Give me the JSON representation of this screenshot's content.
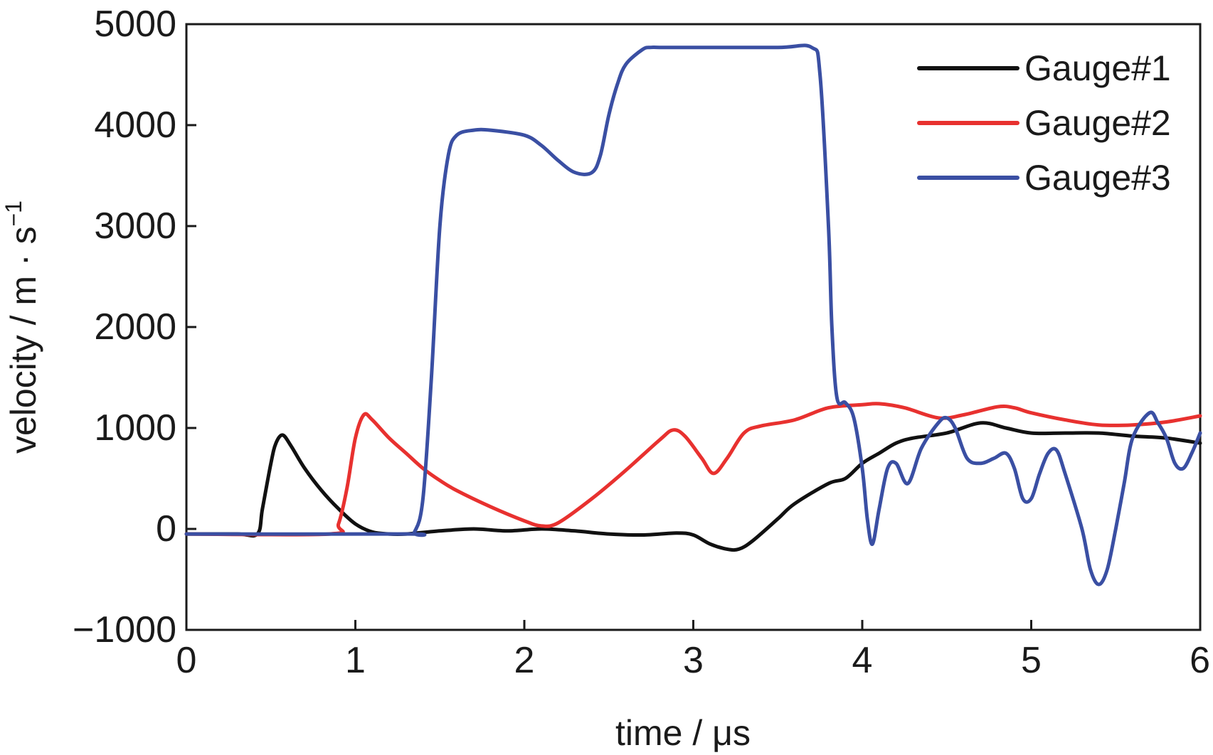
{
  "chart_data": {
    "type": "line",
    "title": "",
    "xlabel": "time / μs",
    "ylabel": "velocity / m · s",
    "ylabel_superscript": "−1",
    "xlim": [
      0,
      6
    ],
    "ylim": [
      -1000,
      5000
    ],
    "xticks": [
      0,
      1,
      2,
      3,
      4,
      5,
      6
    ],
    "yticks": [
      -1000,
      0,
      1000,
      2000,
      3000,
      4000,
      5000
    ],
    "xtick_labels": [
      "0",
      "1",
      "2",
      "3",
      "4",
      "5",
      "6"
    ],
    "ytick_labels": [
      "−1000",
      "0",
      "1000",
      "2000",
      "3000",
      "4000",
      "5000"
    ],
    "grid": false,
    "legend_position": "top-right",
    "series": [
      {
        "name": "Gauge#1",
        "color": "#111111",
        "x": [
          0,
          0.3,
          0.42,
          0.45,
          0.5,
          0.53,
          0.57,
          0.62,
          0.7,
          0.8,
          0.9,
          1.0,
          1.1,
          1.2,
          1.3,
          1.5,
          1.7,
          1.9,
          2.1,
          2.3,
          2.5,
          2.7,
          2.9,
          3.0,
          3.1,
          3.2,
          3.27,
          3.35,
          3.5,
          3.6,
          3.8,
          3.9,
          4.0,
          4.1,
          4.2,
          4.3,
          4.5,
          4.7,
          4.85,
          5.0,
          5.2,
          5.4,
          5.6,
          5.8,
          6.0
        ],
        "y": [
          -50,
          -50,
          -50,
          200,
          650,
          850,
          930,
          820,
          600,
          380,
          200,
          50,
          -30,
          -50,
          -50,
          -20,
          0,
          -20,
          0,
          -20,
          -50,
          -60,
          -40,
          -60,
          -150,
          -200,
          -200,
          -120,
          100,
          250,
          450,
          500,
          650,
          750,
          850,
          900,
          950,
          1050,
          1000,
          950,
          950,
          950,
          920,
          900,
          850
        ]
      },
      {
        "name": "Gauge#2",
        "color": "#e8312f",
        "x": [
          0,
          0.85,
          0.9,
          0.95,
          1.0,
          1.05,
          1.1,
          1.2,
          1.3,
          1.4,
          1.5,
          1.6,
          1.8,
          2.0,
          2.1,
          2.2,
          2.4,
          2.6,
          2.8,
          2.88,
          2.95,
          3.05,
          3.12,
          3.2,
          3.3,
          3.4,
          3.6,
          3.8,
          4.0,
          4.1,
          4.25,
          4.45,
          4.6,
          4.8,
          4.9,
          5.0,
          5.2,
          5.4,
          5.6,
          5.8,
          6.0
        ],
        "y": [
          -50,
          -50,
          50,
          400,
          900,
          1130,
          1080,
          900,
          750,
          600,
          480,
          380,
          220,
          80,
          30,
          60,
          300,
          580,
          880,
          980,
          920,
          700,
          550,
          700,
          950,
          1020,
          1080,
          1200,
          1230,
          1240,
          1200,
          1100,
          1130,
          1210,
          1200,
          1150,
          1080,
          1030,
          1030,
          1060,
          1120
        ]
      },
      {
        "name": "Gauge#3",
        "color": "#3a4fa3",
        "x": [
          0,
          1.3,
          1.35,
          1.4,
          1.45,
          1.5,
          1.55,
          1.6,
          1.7,
          1.8,
          2.0,
          2.1,
          2.2,
          2.3,
          2.4,
          2.45,
          2.5,
          2.55,
          2.6,
          2.7,
          2.75,
          2.8,
          3.0,
          3.5,
          3.7,
          3.75,
          3.8,
          3.82,
          3.85,
          3.9,
          3.95,
          4.0,
          4.03,
          4.06,
          4.1,
          4.15,
          4.2,
          4.27,
          4.35,
          4.45,
          4.5,
          4.55,
          4.62,
          4.7,
          4.78,
          4.85,
          4.9,
          4.95,
          5.0,
          5.05,
          5.1,
          5.15,
          5.2,
          5.3,
          5.35,
          5.4,
          5.45,
          5.5,
          5.55,
          5.6,
          5.7,
          5.75,
          5.8,
          5.85,
          5.9,
          5.95,
          6.0
        ],
        "y": [
          -50,
          -50,
          -30,
          300,
          1500,
          3000,
          3700,
          3900,
          3950,
          3950,
          3900,
          3800,
          3650,
          3530,
          3530,
          3700,
          4100,
          4400,
          4600,
          4750,
          4770,
          4770,
          4770,
          4770,
          4770,
          4500,
          3000,
          2000,
          1300,
          1250,
          1100,
          600,
          100,
          -150,
          200,
          600,
          650,
          450,
          800,
          1050,
          1100,
          1000,
          700,
          650,
          700,
          750,
          600,
          300,
          300,
          550,
          750,
          780,
          550,
          0,
          -400,
          -550,
          -400,
          0,
          450,
          900,
          1150,
          1050,
          900,
          650,
          600,
          750,
          950
        ]
      }
    ]
  }
}
